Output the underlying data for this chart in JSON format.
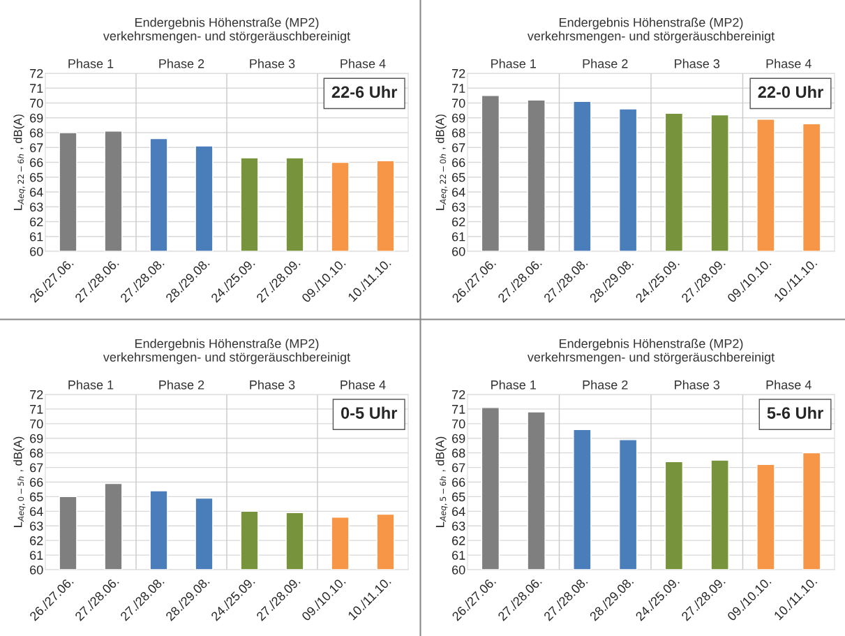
{
  "chart_data": [
    {
      "type": "bar",
      "title": "Endergebnis Höhenstraße (MP2)\nverkehrsmengen- und störgeräuschbereinigt",
      "ylabel": "L$_{Aeq,22−6h}$ , dB(A)",
      "categories": [
        "26./27.06.",
        "27./28.06.",
        "27./28.08.",
        "28./29.08.",
        "24./25.09.",
        "27./28.09.",
        "09./10.10.",
        "10./11.10."
      ],
      "values": [
        68.0,
        68.1,
        67.6,
        67.1,
        66.3,
        66.3,
        66.0,
        66.1
      ],
      "colors": [
        "#7f7f7f",
        "#7f7f7f",
        "#4a7ebb",
        "#4a7ebb",
        "#77933c",
        "#77933c",
        "#f79646",
        "#f79646"
      ],
      "ylim": [
        60,
        72
      ],
      "yticks": [
        60,
        61,
        62,
        63,
        64,
        65,
        66,
        67,
        68,
        69,
        70,
        71,
        72
      ],
      "grid": "y",
      "annotations": [
        "Phase 1",
        "Phase 2",
        "Phase 3",
        "Phase 4",
        "22-6 Uhr"
      ]
    },
    {
      "type": "bar",
      "title": "Endergebnis Höhenstraße (MP2)\nverkehrsmengen- und störgeräuschbereinigt",
      "ylabel": "L$_{Aeq,22−0h}$ , dB(A)",
      "categories": [
        "26./27.06.",
        "27./28.06.",
        "27./28.08.",
        "28./29.08.",
        "24./25.09.",
        "27./28.09.",
        "09./10.10.",
        "10./11.10."
      ],
      "values": [
        70.5,
        70.2,
        70.1,
        69.6,
        69.3,
        69.2,
        68.9,
        68.6
      ],
      "colors": [
        "#7f7f7f",
        "#7f7f7f",
        "#4a7ebb",
        "#4a7ebb",
        "#77933c",
        "#77933c",
        "#f79646",
        "#f79646"
      ],
      "ylim": [
        60,
        72
      ],
      "yticks": [
        60,
        61,
        62,
        63,
        64,
        65,
        66,
        67,
        68,
        69,
        70,
        71,
        72
      ],
      "grid": "y",
      "annotations": [
        "Phase 1",
        "Phase 2",
        "Phase 3",
        "Phase 4",
        "22-0 Uhr"
      ]
    },
    {
      "type": "bar",
      "title": "Endergebnis Höhenstraße (MP2)\nverkehrsmengen- und störgeräuschbereinigt",
      "ylabel": "L$_{Aeq,0−5h}$ , dB(A)",
      "categories": [
        "26./27.06.",
        "27./28.06.",
        "27./28.08.",
        "28./29.08.",
        "24./25.09.",
        "27./28.09.",
        "09./10.10.",
        "10./11.10."
      ],
      "values": [
        65.0,
        65.9,
        65.4,
        64.9,
        64.0,
        63.9,
        63.6,
        63.8
      ],
      "colors": [
        "#7f7f7f",
        "#7f7f7f",
        "#4a7ebb",
        "#4a7ebb",
        "#77933c",
        "#77933c",
        "#f79646",
        "#f79646"
      ],
      "ylim": [
        60,
        72
      ],
      "yticks": [
        60,
        61,
        62,
        63,
        64,
        65,
        66,
        67,
        68,
        69,
        70,
        71,
        72
      ],
      "grid": "y",
      "annotations": [
        "Phase 1",
        "Phase 2",
        "Phase 3",
        "Phase 4",
        "0-5 Uhr"
      ]
    },
    {
      "type": "bar",
      "title": "Endergebnis Höhenstraße (MP2)\nverkehrsmengen- und störgeräuschbereinigt",
      "ylabel": "L$_{Aeq,5−6h}$ , dB(A)",
      "categories": [
        "26./27.06.",
        "27./28.06.",
        "27./28.08.",
        "28./29.08.",
        "24./25.09.",
        "27./28.09.",
        "09./10.10.",
        "10./11.10."
      ],
      "values": [
        71.1,
        70.8,
        69.6,
        68.9,
        67.4,
        67.5,
        67.2,
        68.0
      ],
      "colors": [
        "#7f7f7f",
        "#7f7f7f",
        "#4a7ebb",
        "#4a7ebb",
        "#77933c",
        "#77933c",
        "#f79646",
        "#f79646"
      ],
      "ylim": [
        60,
        72
      ],
      "yticks": [
        60,
        61,
        62,
        63,
        64,
        65,
        66,
        67,
        68,
        69,
        70,
        71,
        72
      ],
      "grid": "y",
      "annotations": [
        "Phase 1",
        "Phase 2",
        "Phase 3",
        "Phase 4",
        "5-6 Uhr"
      ]
    }
  ]
}
